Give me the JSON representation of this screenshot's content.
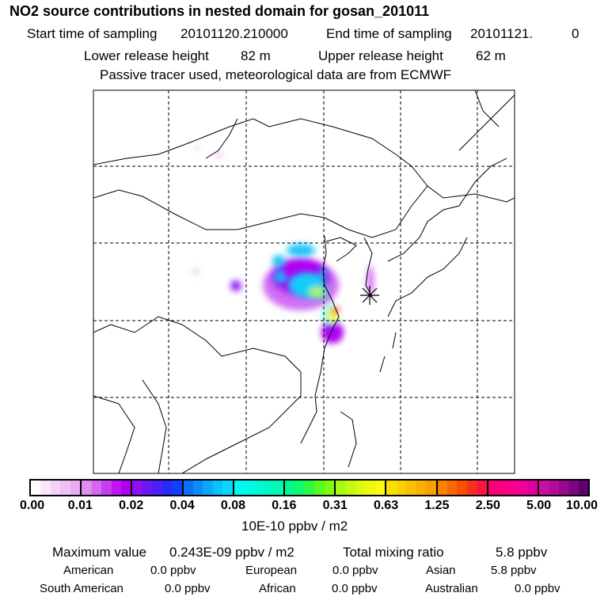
{
  "header": {
    "title": "NO2 source contributions in nested domain for gosan_201011",
    "start_label": "Start time of sampling",
    "start_value": "20101120.210000",
    "end_label": "End time of sampling",
    "end_value": "20101121.",
    "end_value2": "0",
    "lower_label": "Lower release height",
    "lower_value": "82 m",
    "upper_label": "Upper release height",
    "upper_value": "62 m",
    "note": "Passive tracer used, meteorological data are from ECMWF"
  },
  "colorbar": {
    "labels": [
      "0.00",
      "0.01",
      "0.02",
      "0.04",
      "0.08",
      "0.16",
      "0.31",
      "0.63",
      "1.25",
      "2.50",
      "5.00",
      "10.00"
    ],
    "units": "10E-10 ppbv / m2",
    "segments": [
      [
        "#ffffff",
        "#fbe6fb",
        "#f6d2f6",
        "#f0bff4",
        "#e8acf0"
      ],
      [
        "#e08ef0",
        "#d466f2",
        "#c83cf4",
        "#bc16f6",
        "#b000f0"
      ],
      [
        "#8c10f6",
        "#6a18f6",
        "#4a20f8",
        "#2a28fa",
        "#1040fa"
      ],
      [
        "#0a70f8",
        "#0a8cfa",
        "#0aa8fa",
        "#0ac2fa",
        "#0ad8fa"
      ],
      [
        "#00f8f0",
        "#00fae6",
        "#00fad6",
        "#00fac4",
        "#00fab4"
      ],
      [
        "#00fa90",
        "#10fa70",
        "#30fa40",
        "#58fa20",
        "#80fa10"
      ],
      [
        "#a8fa10",
        "#c4fa10",
        "#dcfa10",
        "#ecfa10",
        "#fafa10"
      ],
      [
        "#fae000",
        "#fad000",
        "#fac000",
        "#fab000",
        "#faa000"
      ],
      [
        "#fa8000",
        "#fa6800",
        "#fa5000",
        "#fa3020",
        "#fa1840"
      ],
      [
        "#fa0070",
        "#fa0080",
        "#fa0090",
        "#f00098",
        "#e000a0"
      ],
      [
        "#c810a0",
        "#b00c98",
        "#980890",
        "#7c0480",
        "#600070"
      ]
    ]
  },
  "summary": {
    "max_label": "Maximum value",
    "max_value": "0.243E-09 ppbv / m2",
    "total_label": "Total mixing ratio",
    "total_value": "5.8 ppbv",
    "regions": [
      {
        "name": "American",
        "value": "0.0 ppbv"
      },
      {
        "name": "European",
        "value": "0.0 ppbv"
      },
      {
        "name": "Asian",
        "value": "5.8 ppbv"
      },
      {
        "name": "South American",
        "value": "0.0 ppbv"
      },
      {
        "name": "African",
        "value": "0.0 ppbv"
      },
      {
        "name": "Australian",
        "value": "0.0 ppbv"
      }
    ]
  },
  "map": {
    "receptor_icon": "asterisk-icon"
  }
}
